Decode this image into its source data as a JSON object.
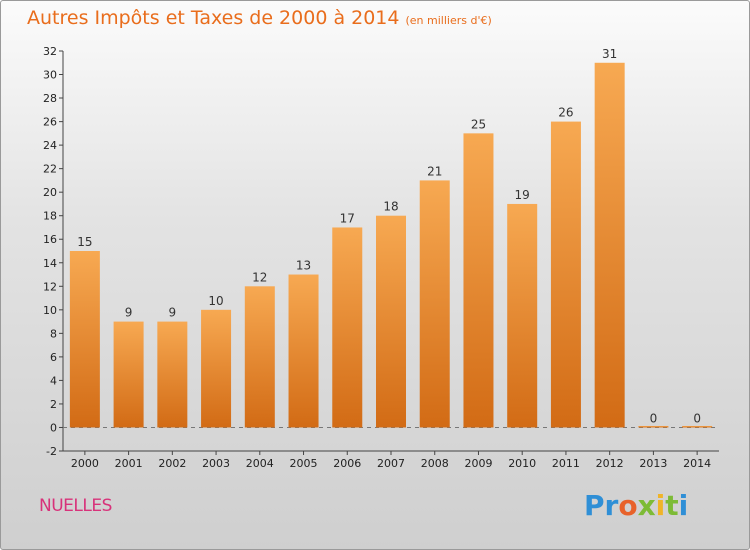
{
  "title": "Autres Impôts et Taxes de 2000 à 2014",
  "subtitle": "(en milliers d'€)",
  "commune": "NUELLES",
  "logo_text": "Proxiti",
  "colors": {
    "title": "#e96d1c",
    "bar_light": "#f7a952",
    "bar_dark": "#d26b15",
    "commune": "#d8327a"
  },
  "chart_data": {
    "type": "bar",
    "categories": [
      "2000",
      "2001",
      "2002",
      "2003",
      "2004",
      "2005",
      "2006",
      "2007",
      "2008",
      "2009",
      "2010",
      "2011",
      "2012",
      "2013",
      "2014"
    ],
    "values": [
      15,
      9,
      9,
      10,
      12,
      13,
      17,
      18,
      21,
      25,
      19,
      26,
      31,
      0,
      0
    ],
    "title": "Autres Impôts et Taxes de 2000 à 2014",
    "xlabel": "",
    "ylabel": "",
    "ylim": [
      -2,
      32
    ],
    "yticks": [
      -2,
      0,
      2,
      4,
      6,
      8,
      10,
      12,
      14,
      16,
      18,
      20,
      22,
      24,
      26,
      28,
      30,
      32
    ],
    "grid": false,
    "legend": "none"
  }
}
